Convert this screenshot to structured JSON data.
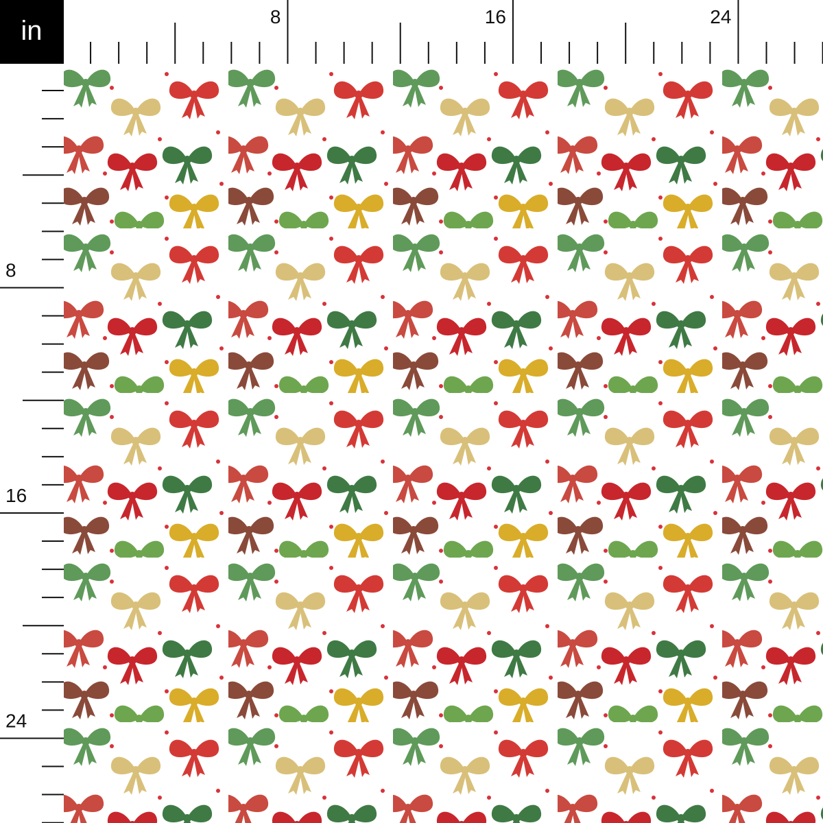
{
  "unit": "in",
  "top_ruler": {
    "ticks": [
      8,
      16,
      24
    ]
  },
  "left_ruler": {
    "ticks": [
      8,
      16,
      24
    ]
  }
}
